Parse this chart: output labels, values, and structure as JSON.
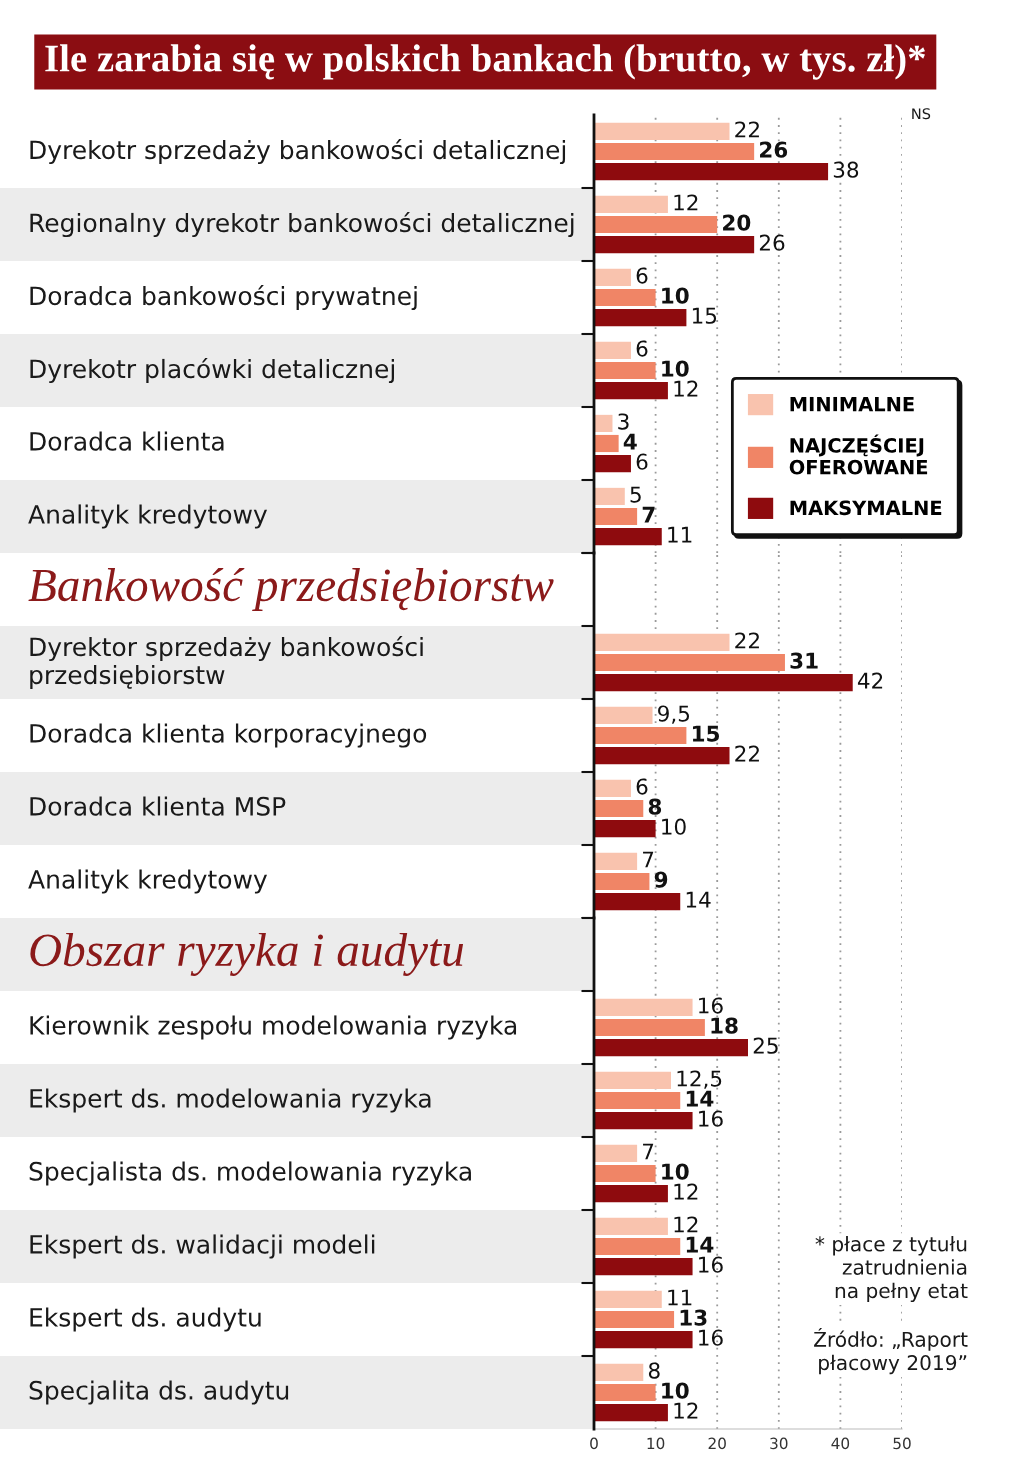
{
  "chart_data": [
    {
      "type": "bar",
      "orientation": "horizontal",
      "title": "Ile zarabia się w polskich bankach (brutto, w tys. zł)*",
      "categories": [
        "Dyrekotr sprzedaży bankowości detalicznej",
        "Regionalny dyrekotr bankowości detalicznej",
        "Doradca bankowości prywatnej",
        "Dyrekotr placówki detalicznej",
        "Doradca klienta",
        "Analityk kredytowy"
      ],
      "series": [
        {
          "name": "MINIMALNE",
          "color": "#f9c3ae",
          "values": [
            22,
            12,
            6,
            6,
            3,
            5
          ],
          "value_labels": [
            "22",
            "12",
            "6",
            "6",
            "3",
            "5"
          ]
        },
        {
          "name": "NAJCZĘŚCIEJ\nOFEROWANE",
          "color": "#f08566",
          "values": [
            26,
            20,
            10,
            10,
            4,
            7
          ],
          "value_labels": [
            "26",
            "20",
            "10",
            "10",
            "4",
            "7"
          ]
        },
        {
          "name": "MAKSYMALNE",
          "color": "#8e0b0e",
          "values": [
            38,
            26,
            15,
            12,
            6,
            11
          ],
          "value_labels": [
            "38",
            "26",
            "15",
            "12",
            "6",
            "11"
          ]
        }
      ],
      "xlim": [
        0,
        50
      ],
      "xticks": [
        0,
        10,
        20,
        30,
        40,
        50
      ],
      "tick_labels": "y",
      "grid": "x",
      "legend": "bottom right",
      "annotations": [
        "NS"
      ]
    },
    {
      "type": "bar",
      "orientation": "horizontal",
      "title": "Bankowość przedsiębiorstw",
      "categories": [
        "Dyrektor sprzedaży bankowości\nprzedsiębiorstw",
        "Doradca klienta korporacyjnego",
        "Doradca klienta MSP",
        "Analityk kredytowy"
      ],
      "series": [
        {
          "color": "#f9c3ae",
          "values": [
            22,
            9.5,
            6,
            7
          ],
          "value_labels": [
            "22",
            "9,5",
            "6",
            "7"
          ]
        },
        {
          "color": "#f08566",
          "values": [
            31,
            15,
            8,
            9
          ],
          "value_labels": [
            "31",
            "15",
            "8",
            "9"
          ]
        },
        {
          "color": "#8e0b0e",
          "values": [
            42,
            22,
            10,
            14
          ],
          "value_labels": [
            "42",
            "22",
            "10",
            "14"
          ]
        }
      ],
      "xlim": [
        0,
        50
      ],
      "xticks": [
        0,
        10,
        20,
        30,
        40,
        50
      ],
      "tick_labels": "y",
      "grid": "x"
    },
    {
      "type": "bar",
      "orientation": "horizontal",
      "title": "Obszar ryzyka i audytu",
      "categories": [
        "Kierownik zespołu modelowania ryzyka",
        "Ekspert ds. modelowania ryzyka",
        "Specjalista ds. modelowania ryzyka",
        "Ekspert ds. walidacji modeli",
        "Ekspert ds. audytu",
        "Specjalita ds. audytu"
      ],
      "series": [
        {
          "color": "#f9c3ae",
          "values": [
            16,
            12.5,
            7,
            12,
            11,
            8
          ],
          "value_labels": [
            "16",
            "12,5",
            "7",
            "12",
            "11",
            "8"
          ]
        },
        {
          "color": "#f08566",
          "values": [
            18,
            14,
            10,
            14,
            13,
            10
          ],
          "value_labels": [
            "18",
            "14",
            "10",
            "14",
            "13",
            "10"
          ]
        },
        {
          "color": "#8e0b0e",
          "values": [
            25,
            16,
            12,
            16,
            16,
            12
          ],
          "value_labels": [
            "25",
            "16",
            "12",
            "16",
            "16",
            "12"
          ]
        }
      ],
      "xlim": [
        0,
        50
      ],
      "xticks": [
        0,
        10,
        20,
        30,
        40,
        50
      ],
      "grid": "x",
      "annotations": [
        "* płace z tytułu\nzatrudnienia\nna pełny etat",
        "Źródło: „Raport\npłacowy 2019”"
      ]
    }
  ]
}
